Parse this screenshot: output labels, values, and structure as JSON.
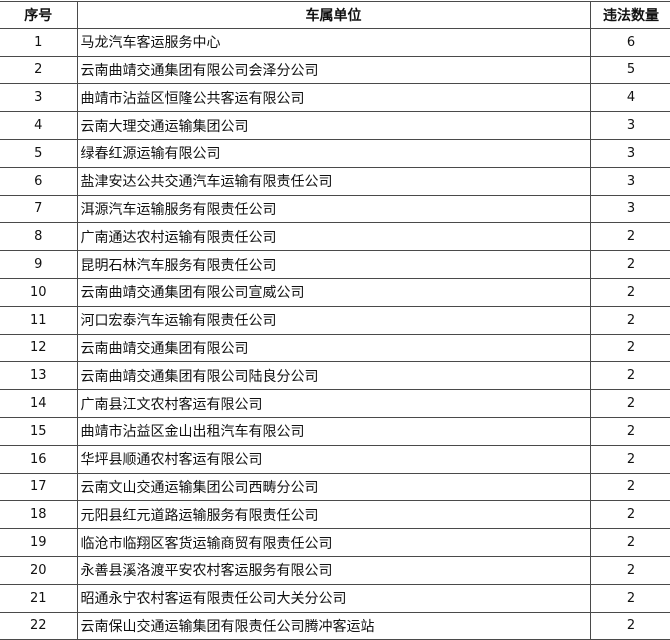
{
  "headers": {
    "index": "序号",
    "unit": "车属单位",
    "count": "违法数量"
  },
  "rows": [
    {
      "index": "1",
      "unit": "马龙汽车客运服务中心",
      "count": "6"
    },
    {
      "index": "2",
      "unit": "云南曲靖交通集团有限公司会泽分公司",
      "count": "5"
    },
    {
      "index": "3",
      "unit": "曲靖市沾益区恒隆公共客运有限公司",
      "count": "4"
    },
    {
      "index": "4",
      "unit": "云南大理交通运输集团公司",
      "count": "3"
    },
    {
      "index": "5",
      "unit": "绿春红源运输有限公司",
      "count": "3"
    },
    {
      "index": "6",
      "unit": "盐津安达公共交通汽车运输有限责任公司",
      "count": "3"
    },
    {
      "index": "7",
      "unit": "洱源汽车运输服务有限责任公司",
      "count": "3"
    },
    {
      "index": "8",
      "unit": "广南通达农村运输有限责任公司",
      "count": "2"
    },
    {
      "index": "9",
      "unit": "昆明石林汽车服务有限责任公司",
      "count": "2"
    },
    {
      "index": "10",
      "unit": "云南曲靖交通集团有限公司宣威公司",
      "count": "2"
    },
    {
      "index": "11",
      "unit": "河口宏泰汽车运输有限责任公司",
      "count": "2"
    },
    {
      "index": "12",
      "unit": "云南曲靖交通集团有限公司",
      "count": "2"
    },
    {
      "index": "13",
      "unit": "云南曲靖交通集团有限公司陆良分公司",
      "count": "2"
    },
    {
      "index": "14",
      "unit": "广南县江文农村客运有限公司",
      "count": "2"
    },
    {
      "index": "15",
      "unit": "曲靖市沾益区金山出租汽车有限公司",
      "count": "2"
    },
    {
      "index": "16",
      "unit": "华坪县顺通农村客运有限公司",
      "count": "2"
    },
    {
      "index": "17",
      "unit": "云南文山交通运输集团公司西畴分公司",
      "count": "2"
    },
    {
      "index": "18",
      "unit": "元阳县红元道路运输服务有限责任公司",
      "count": "2"
    },
    {
      "index": "19",
      "unit": "临沧市临翔区客货运输商贸有限责任公司",
      "count": "2"
    },
    {
      "index": "20",
      "unit": "永善县溪洛渡平安农村客运服务有限公司",
      "count": "2"
    },
    {
      "index": "21",
      "unit": "昭通永宁农村客运有限责任公司大关分公司",
      "count": "2"
    },
    {
      "index": "22",
      "unit": "云南保山交通运输集团有限责任公司腾冲客运站",
      "count": "2"
    }
  ]
}
